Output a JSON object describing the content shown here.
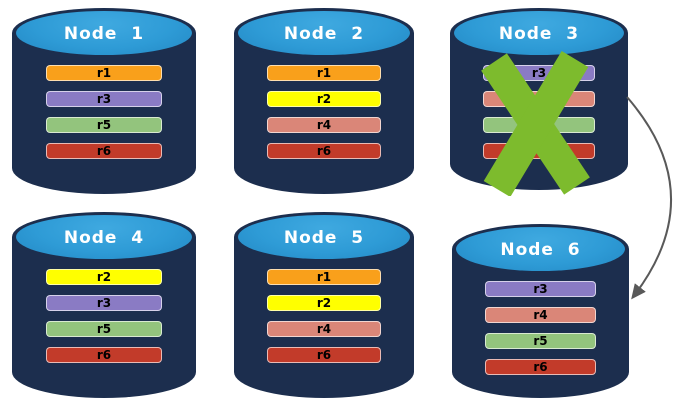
{
  "diagram": {
    "failed_node": "Node  3",
    "arrow": {
      "from": "Node  3",
      "to": "Node  6"
    }
  },
  "colors": {
    "cylinder_body": "#1C2E4E",
    "cylinder_top": "#2E9BD6",
    "title_text": "#FFFFFF",
    "bar_label_text": "#000000",
    "failure_x": "#7DBB2D",
    "arrow": "#595959",
    "replicas": {
      "r1": "#F9A01B",
      "r2": "#FFFF00",
      "r3": "#8A7BC4",
      "r4": "#DA8678",
      "r5": "#93C47D",
      "r6": "#C23B2A"
    }
  },
  "nodes": [
    {
      "title": "Node  1",
      "failed": false,
      "bars": [
        "r1",
        "r3",
        "r5",
        "r6"
      ]
    },
    {
      "title": "Node  2",
      "failed": false,
      "bars": [
        "r1",
        "r2",
        "r4",
        "r6"
      ]
    },
    {
      "title": "Node  3",
      "failed": true,
      "bars": [
        "r3",
        "r4",
        "r5",
        "r6"
      ]
    },
    {
      "title": "Node  4",
      "failed": false,
      "bars": [
        "r2",
        "r3",
        "r5",
        "r6"
      ]
    },
    {
      "title": "Node  5",
      "failed": false,
      "bars": [
        "r1",
        "r2",
        "r4",
        "r6"
      ]
    },
    {
      "title": "Node  6",
      "failed": false,
      "bars": [
        "r3",
        "r4",
        "r5",
        "r6"
      ]
    }
  ]
}
